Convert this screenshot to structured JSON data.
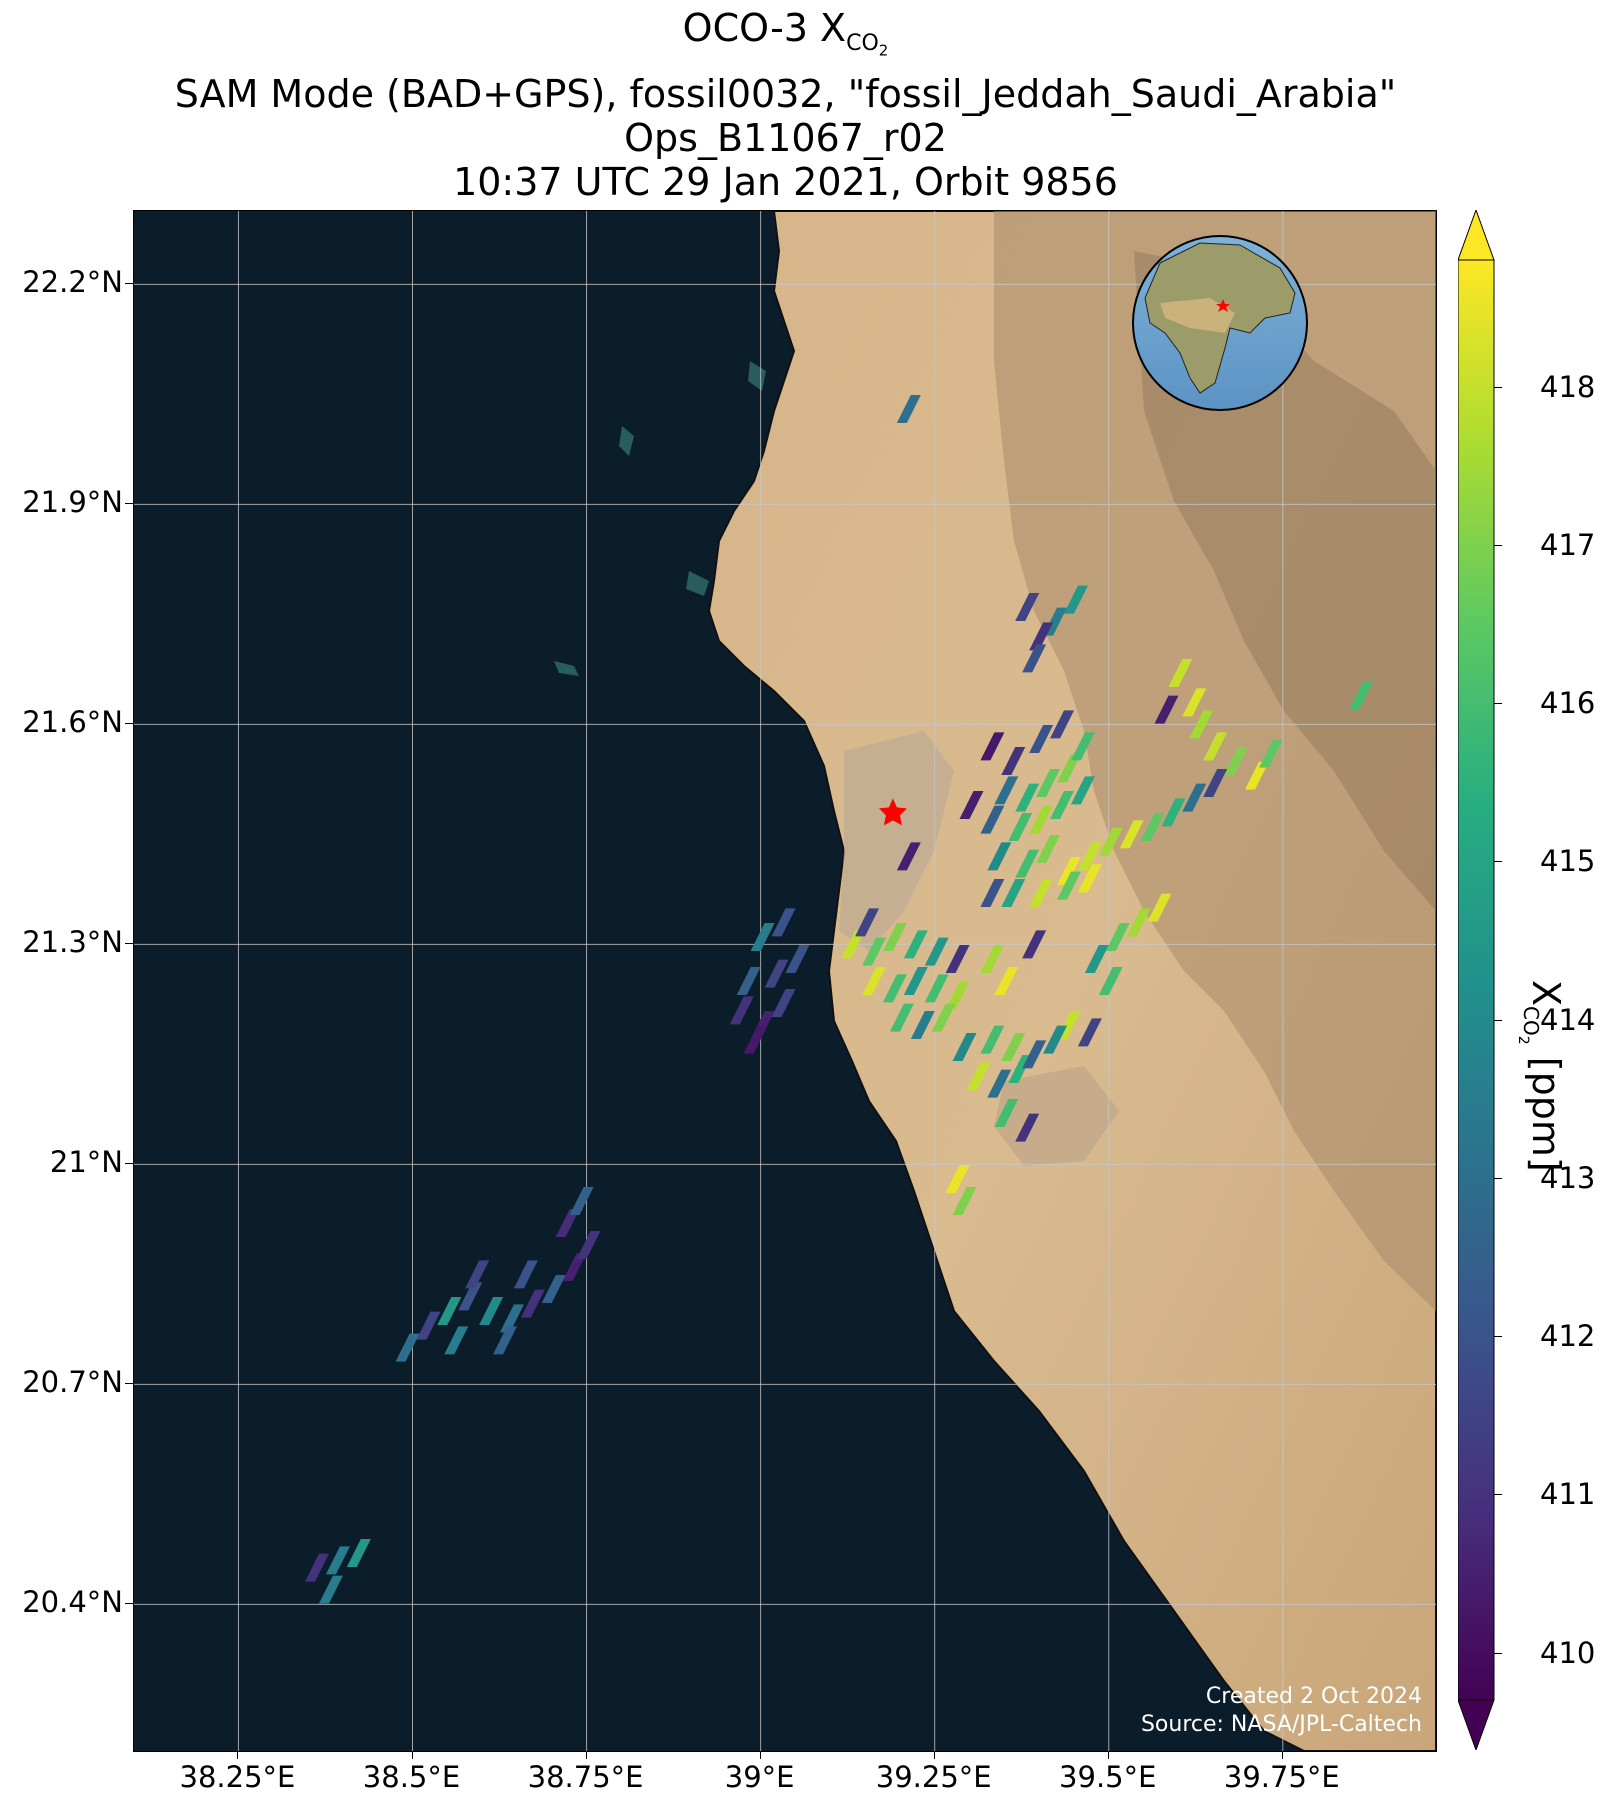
{
  "title": {
    "line1_prefix": "OCO-3 X",
    "line1_sub": "CO",
    "line1_subsub": "2",
    "line2": "SAM Mode (BAD+GPS), fossil0032, \"fossil_Jeddah_Saudi_Arabia\"",
    "line3": "Ops_B11067_r02",
    "line4": "10:37 UTC 29 Jan 2021, Orbit 9856"
  },
  "map": {
    "lat_labels": [
      "22.2°N",
      "21.9°N",
      "21.6°N",
      "21.3°N",
      "21°N",
      "20.7°N",
      "20.4°N"
    ],
    "lon_labels": [
      "38.25°E",
      "38.5°E",
      "38.75°E",
      "39°E",
      "39.25°E",
      "39.5°E",
      "39.75°E"
    ],
    "lat_values": [
      22.2,
      21.9,
      21.6,
      21.3,
      21.0,
      20.7,
      20.4
    ],
    "lon_values": [
      38.25,
      38.5,
      38.75,
      39.0,
      39.25,
      39.5,
      39.75
    ],
    "target_marker": {
      "name": "Jeddah",
      "lat": 21.48,
      "lon": 39.19,
      "color": "#ff0000"
    },
    "credit_line1": "Created 2 Oct 2024",
    "credit_line2": "Source: NASA/JPL-Caltech",
    "colors": {
      "sea": "#0b1c2a",
      "land": "#d9b88a",
      "terrain": "#a8896a",
      "grid": "#c8c8c8"
    }
  },
  "colorbar": {
    "ticks": [
      "410",
      "411",
      "412",
      "413",
      "414",
      "415",
      "416",
      "417",
      "418"
    ],
    "tick_values": [
      410,
      411,
      412,
      413,
      414,
      415,
      416,
      417,
      418
    ],
    "min": 409.7,
    "max": 418.8,
    "cmap": "viridis",
    "label_prefix": "X",
    "label_sub": "CO",
    "label_subsub": "2",
    "label_suffix": " [ppm]"
  },
  "chart_data": {
    "type": "heatmap",
    "lon_range": [
      38.1,
      39.97
    ],
    "lat_range": [
      20.2,
      22.3
    ],
    "series": [
      {
        "name": "",
        "points": [
          {
            "lon": 39.38,
            "lat": 21.76,
            "v": 411.5
          },
          {
            "lon": 39.42,
            "lat": 21.74,
            "v": 413.5
          },
          {
            "lon": 39.45,
            "lat": 21.77,
            "v": 414.5
          },
          {
            "lon": 39.4,
            "lat": 21.72,
            "v": 411.0
          },
          {
            "lon": 39.39,
            "lat": 21.69,
            "v": 412.0
          },
          {
            "lon": 39.6,
            "lat": 21.67,
            "v": 418.0
          },
          {
            "lon": 39.62,
            "lat": 21.63,
            "v": 418.3
          },
          {
            "lon": 39.63,
            "lat": 21.6,
            "v": 417.5
          },
          {
            "lon": 39.65,
            "lat": 21.57,
            "v": 418.0
          },
          {
            "lon": 39.68,
            "lat": 21.55,
            "v": 417.0
          },
          {
            "lon": 39.71,
            "lat": 21.53,
            "v": 418.5
          },
          {
            "lon": 39.73,
            "lat": 21.56,
            "v": 416.5
          },
          {
            "lon": 39.58,
            "lat": 21.62,
            "v": 410.5
          },
          {
            "lon": 39.86,
            "lat": 21.64,
            "v": 416.0
          },
          {
            "lon": 39.33,
            "lat": 21.57,
            "v": 410.3
          },
          {
            "lon": 39.36,
            "lat": 21.55,
            "v": 411.0
          },
          {
            "lon": 39.4,
            "lat": 21.58,
            "v": 412.0
          },
          {
            "lon": 39.43,
            "lat": 21.6,
            "v": 411.5
          },
          {
            "lon": 39.35,
            "lat": 21.51,
            "v": 413.0
          },
          {
            "lon": 39.38,
            "lat": 21.5,
            "v": 415.5
          },
          {
            "lon": 39.41,
            "lat": 21.52,
            "v": 416.5
          },
          {
            "lon": 39.44,
            "lat": 21.54,
            "v": 417.0
          },
          {
            "lon": 39.46,
            "lat": 21.57,
            "v": 416.0
          },
          {
            "lon": 39.3,
            "lat": 21.49,
            "v": 410.5
          },
          {
            "lon": 39.33,
            "lat": 21.47,
            "v": 412.5
          },
          {
            "lon": 39.37,
            "lat": 21.46,
            "v": 416.0
          },
          {
            "lon": 39.4,
            "lat": 21.47,
            "v": 417.5
          },
          {
            "lon": 39.43,
            "lat": 21.49,
            "v": 416.0
          },
          {
            "lon": 39.46,
            "lat": 21.51,
            "v": 415.0
          },
          {
            "lon": 39.34,
            "lat": 21.42,
            "v": 414.0
          },
          {
            "lon": 39.38,
            "lat": 21.41,
            "v": 416.0
          },
          {
            "lon": 39.41,
            "lat": 21.43,
            "v": 417.0
          },
          {
            "lon": 39.44,
            "lat": 21.4,
            "v": 418.5
          },
          {
            "lon": 39.47,
            "lat": 21.42,
            "v": 418.0
          },
          {
            "lon": 39.5,
            "lat": 21.44,
            "v": 417.5
          },
          {
            "lon": 39.53,
            "lat": 21.45,
            "v": 418.3
          },
          {
            "lon": 39.56,
            "lat": 21.46,
            "v": 416.5
          },
          {
            "lon": 39.59,
            "lat": 21.48,
            "v": 415.5
          },
          {
            "lon": 39.62,
            "lat": 21.5,
            "v": 413.0
          },
          {
            "lon": 39.65,
            "lat": 21.52,
            "v": 411.5
          },
          {
            "lon": 39.33,
            "lat": 21.37,
            "v": 412.0
          },
          {
            "lon": 39.36,
            "lat": 21.37,
            "v": 415.0
          },
          {
            "lon": 39.4,
            "lat": 21.37,
            "v": 418.0
          },
          {
            "lon": 39.44,
            "lat": 21.38,
            "v": 416.5
          },
          {
            "lon": 39.47,
            "lat": 21.39,
            "v": 418.5
          },
          {
            "lon": 39.13,
            "lat": 21.3,
            "v": 418.0
          },
          {
            "lon": 39.16,
            "lat": 21.29,
            "v": 416.5
          },
          {
            "lon": 39.19,
            "lat": 21.31,
            "v": 417.0
          },
          {
            "lon": 39.22,
            "lat": 21.3,
            "v": 415.5
          },
          {
            "lon": 39.25,
            "lat": 21.29,
            "v": 414.5
          },
          {
            "lon": 39.28,
            "lat": 21.28,
            "v": 411.0
          },
          {
            "lon": 39.16,
            "lat": 21.25,
            "v": 418.3
          },
          {
            "lon": 39.19,
            "lat": 21.24,
            "v": 416.0
          },
          {
            "lon": 39.22,
            "lat": 21.25,
            "v": 414.5
          },
          {
            "lon": 39.25,
            "lat": 21.24,
            "v": 416.0
          },
          {
            "lon": 39.28,
            "lat": 21.23,
            "v": 417.5
          },
          {
            "lon": 39.15,
            "lat": 21.33,
            "v": 411.5
          },
          {
            "lon": 39.2,
            "lat": 21.2,
            "v": 416.0
          },
          {
            "lon": 39.23,
            "lat": 21.19,
            "v": 413.5
          },
          {
            "lon": 39.26,
            "lat": 21.2,
            "v": 417.0
          },
          {
            "lon": 39.29,
            "lat": 21.16,
            "v": 414.0
          },
          {
            "lon": 39.33,
            "lat": 21.17,
            "v": 416.0
          },
          {
            "lon": 39.36,
            "lat": 21.16,
            "v": 417.0
          },
          {
            "lon": 39.31,
            "lat": 21.12,
            "v": 418.0
          },
          {
            "lon": 39.34,
            "lat": 21.11,
            "v": 413.0
          },
          {
            "lon": 39.37,
            "lat": 21.13,
            "v": 415.5
          },
          {
            "lon": 39.39,
            "lat": 21.15,
            "v": 412.5
          },
          {
            "lon": 39.35,
            "lat": 21.07,
            "v": 416.0
          },
          {
            "lon": 39.38,
            "lat": 21.05,
            "v": 411.0
          },
          {
            "lon": 39.28,
            "lat": 20.98,
            "v": 418.5
          },
          {
            "lon": 39.29,
            "lat": 20.95,
            "v": 417.0
          },
          {
            "lon": 39.33,
            "lat": 21.28,
            "v": 417.5
          },
          {
            "lon": 39.35,
            "lat": 21.25,
            "v": 418.5
          },
          {
            "lon": 39.39,
            "lat": 21.3,
            "v": 411.0
          },
          {
            "lon": 39.48,
            "lat": 21.28,
            "v": 414.5
          },
          {
            "lon": 39.51,
            "lat": 21.31,
            "v": 416.5
          },
          {
            "lon": 39.54,
            "lat": 21.33,
            "v": 417.5
          },
          {
            "lon": 39.57,
            "lat": 21.35,
            "v": 418.3
          },
          {
            "lon": 39.5,
            "lat": 21.25,
            "v": 416.0
          },
          {
            "lon": 39.44,
            "lat": 21.19,
            "v": 418.0
          },
          {
            "lon": 39.47,
            "lat": 21.18,
            "v": 411.5
          },
          {
            "lon": 39.42,
            "lat": 21.17,
            "v": 414.0
          },
          {
            "lon": 39.21,
            "lat": 21.42,
            "v": 410.5
          },
          {
            "lon": 39.0,
            "lat": 21.31,
            "v": 413.5
          },
          {
            "lon": 39.03,
            "lat": 21.33,
            "v": 412.0
          },
          {
            "lon": 38.98,
            "lat": 21.25,
            "v": 412.5
          },
          {
            "lon": 39.02,
            "lat": 21.26,
            "v": 411.5
          },
          {
            "lon": 39.05,
            "lat": 21.28,
            "v": 412.0
          },
          {
            "lon": 38.97,
            "lat": 21.21,
            "v": 411.0
          },
          {
            "lon": 39.0,
            "lat": 21.19,
            "v": 410.5
          },
          {
            "lon": 39.03,
            "lat": 21.22,
            "v": 411.5
          },
          {
            "lon": 38.99,
            "lat": 21.17,
            "v": 410.3
          },
          {
            "lon": 38.52,
            "lat": 20.78,
            "v": 411.5
          },
          {
            "lon": 38.55,
            "lat": 20.8,
            "v": 414.5
          },
          {
            "lon": 38.58,
            "lat": 20.82,
            "v": 412.0
          },
          {
            "lon": 38.61,
            "lat": 20.8,
            "v": 414.0
          },
          {
            "lon": 38.64,
            "lat": 20.79,
            "v": 413.0
          },
          {
            "lon": 38.67,
            "lat": 20.81,
            "v": 411.0
          },
          {
            "lon": 38.7,
            "lat": 20.83,
            "v": 412.5
          },
          {
            "lon": 38.73,
            "lat": 20.86,
            "v": 410.5
          },
          {
            "lon": 38.75,
            "lat": 20.89,
            "v": 411.0
          },
          {
            "lon": 38.72,
            "lat": 20.92,
            "v": 410.8
          },
          {
            "lon": 38.49,
            "lat": 20.75,
            "v": 413.0
          },
          {
            "lon": 38.56,
            "lat": 20.76,
            "v": 413.5
          },
          {
            "lon": 38.63,
            "lat": 20.76,
            "v": 412.5
          },
          {
            "lon": 38.66,
            "lat": 20.85,
            "v": 412.0
          },
          {
            "lon": 38.59,
            "lat": 20.85,
            "v": 411.5
          },
          {
            "lon": 38.74,
            "lat": 20.95,
            "v": 412.5
          },
          {
            "lon": 38.36,
            "lat": 20.45,
            "v": 411.0
          },
          {
            "lon": 38.39,
            "lat": 20.46,
            "v": 413.5
          },
          {
            "lon": 38.42,
            "lat": 20.47,
            "v": 414.5
          },
          {
            "lon": 38.38,
            "lat": 20.42,
            "v": 413.5
          },
          {
            "lon": 39.21,
            "lat": 22.03,
            "v": 413.0
          }
        ]
      }
    ]
  }
}
